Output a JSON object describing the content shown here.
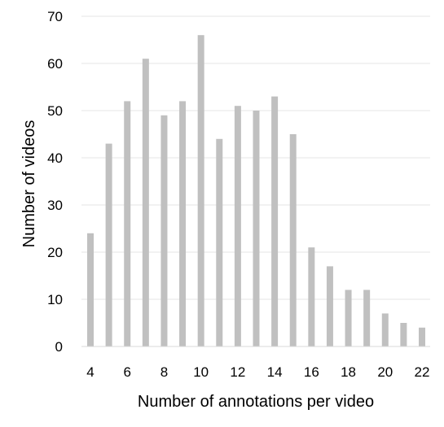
{
  "chart_data": {
    "type": "bar",
    "title": "",
    "xlabel": "Number of annotations per video",
    "ylabel": "Number of videos",
    "x": [
      4,
      5,
      6,
      7,
      8,
      9,
      10,
      11,
      12,
      13,
      14,
      15,
      16,
      17,
      18,
      19,
      20,
      21,
      22
    ],
    "values": [
      24,
      43,
      52,
      61,
      49,
      52,
      66,
      44,
      51,
      50,
      53,
      45,
      21,
      17,
      12,
      12,
      7,
      5,
      4
    ],
    "x_tick_labels": [
      "4",
      "6",
      "8",
      "10",
      "12",
      "14",
      "16",
      "18",
      "20",
      "22"
    ],
    "y_tick_labels": [
      "0",
      "10",
      "20",
      "30",
      "40",
      "50",
      "60",
      "70"
    ],
    "ylim": [
      0,
      70
    ],
    "grid": true,
    "legend": "none",
    "bar_color": "#c0c0c0",
    "grid_color": "#e6e6e6"
  }
}
